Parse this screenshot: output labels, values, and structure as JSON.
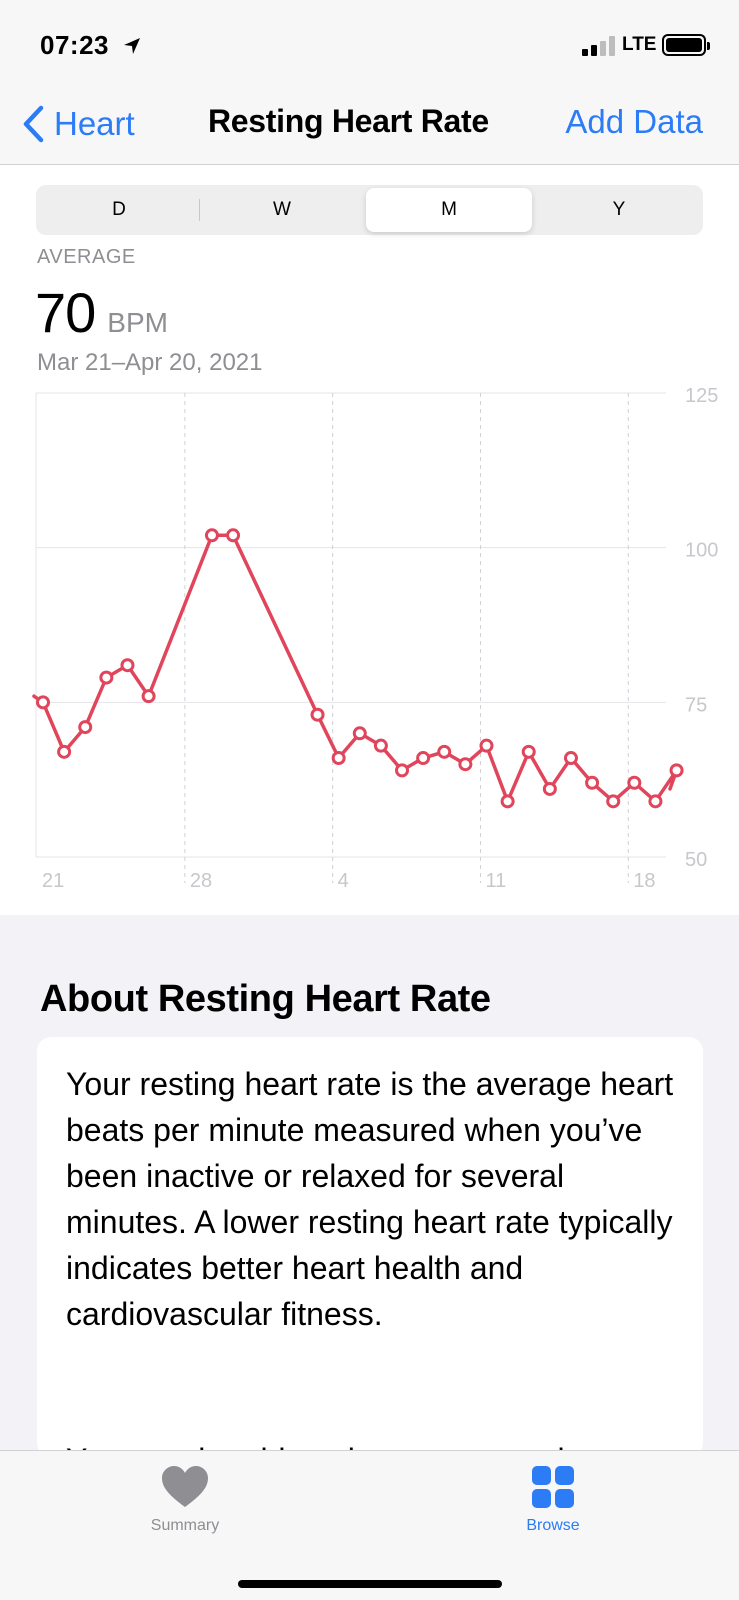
{
  "status_bar": {
    "time": "07:23",
    "network": "LTE"
  },
  "nav": {
    "back_label": "Heart",
    "title": "Resting Heart Rate",
    "action_label": "Add Data"
  },
  "segments": [
    {
      "label": "D",
      "active": false
    },
    {
      "label": "W",
      "active": false
    },
    {
      "label": "M",
      "active": true
    },
    {
      "label": "Y",
      "active": false
    }
  ],
  "summary": {
    "label": "AVERAGE",
    "value": "70",
    "unit": "BPM",
    "range": "Mar 21–Apr 20, 2021"
  },
  "chart_data": {
    "type": "line",
    "title": "",
    "xlabel": "",
    "ylabel": "",
    "x_tick_labels": [
      "21",
      "28",
      "4",
      "11",
      "18"
    ],
    "y_tick_labels": [
      "125",
      "100",
      "75",
      "50"
    ],
    "ylim": [
      50,
      125
    ],
    "grid": true,
    "color": "#e0455b",
    "series": [
      {
        "x": [
          "Mar 21",
          "Mar 22",
          "Mar 23",
          "Mar 24",
          "Mar 25",
          "Mar 26",
          "Mar 29",
          "Mar 30",
          "Apr 3",
          "Apr 4",
          "Apr 5",
          "Apr 6",
          "Apr 7",
          "Apr 8",
          "Apr 9",
          "Apr 10",
          "Apr 11",
          "Apr 12",
          "Apr 13",
          "Apr 14",
          "Apr 15",
          "Apr 16",
          "Apr 17",
          "Apr 18",
          "Apr 19",
          "Apr 20"
        ],
        "values": [
          75,
          67,
          71,
          79,
          81,
          76,
          102,
          102,
          73,
          66,
          70,
          68,
          64,
          66,
          67,
          65,
          68,
          59,
          67,
          61,
          66,
          62,
          59,
          62,
          59,
          64
        ]
      }
    ]
  },
  "about": {
    "title": "About Resting Heart Rate",
    "paragraph1": "Your resting heart rate is the average heart beats per minute measured when you’ve been inactive or relaxed for several minutes. A lower resting heart rate typically indicates better heart health and cardiovascular fitness.",
    "paragraph2": "You may be able to lower your resting"
  },
  "tabs": [
    {
      "label": "Summary",
      "icon": "heart-icon",
      "active": false
    },
    {
      "label": "Browse",
      "icon": "grid-icon",
      "active": true
    }
  ],
  "colors": {
    "accent": "#2c7cf6",
    "line": "#e0455b",
    "inactive": "#8e8e93"
  }
}
